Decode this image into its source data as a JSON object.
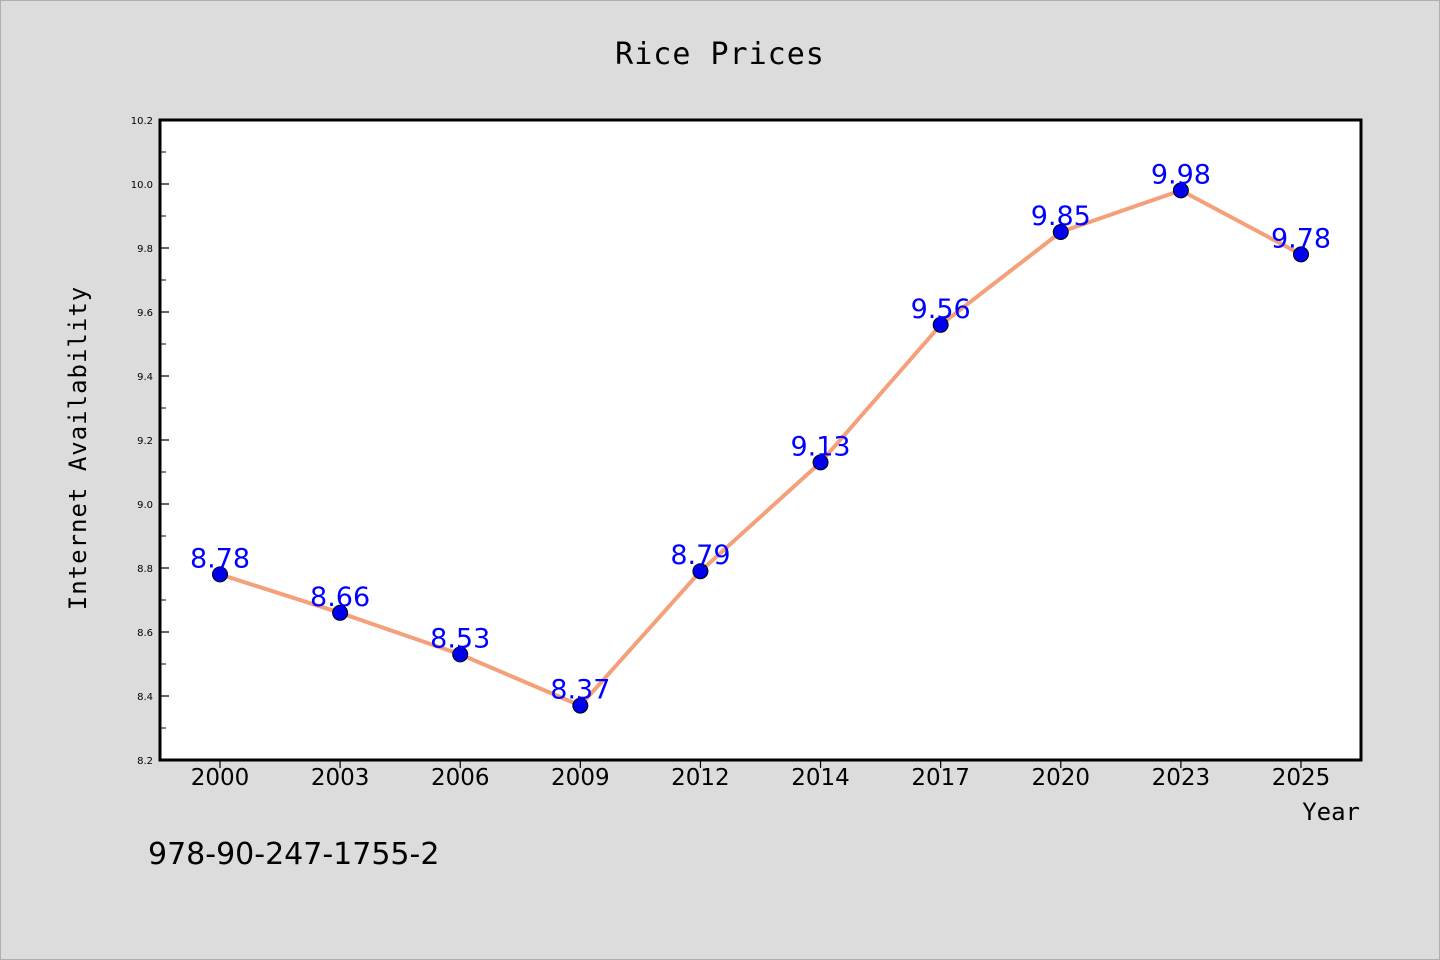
{
  "chart_data": {
    "type": "line",
    "title": "Rice Prices",
    "xlabel": "Year",
    "ylabel": "Internet Availability",
    "categories": [
      "2000",
      "2003",
      "2006",
      "2009",
      "2012",
      "2014",
      "2017",
      "2020",
      "2023",
      "2025"
    ],
    "series": [
      {
        "values": [
          8.78,
          8.66,
          8.53,
          8.37,
          8.79,
          9.13,
          9.56,
          9.85,
          9.98,
          9.78
        ]
      }
    ],
    "data_labels": [
      "8.78",
      "8.66",
      "8.53",
      "8.37",
      "8.79",
      "9.13",
      "9.56",
      "9.85",
      "9.98",
      "9.78"
    ],
    "ylim": [
      8.2,
      10.2
    ],
    "yticks": [
      "8.2",
      "8.4",
      "8.6",
      "8.8",
      "9.0",
      "9.2",
      "9.4",
      "9.6",
      "9.8",
      "10.0",
      "10.2"
    ],
    "grid": false,
    "legend": "none",
    "colors": {
      "line": "#f4a07a",
      "marker": "#0000ee",
      "label": "#0000ff",
      "background": "#dcdcdc",
      "plot_background": "#ffffff"
    }
  },
  "footnote": "978-90-247-1755-2"
}
